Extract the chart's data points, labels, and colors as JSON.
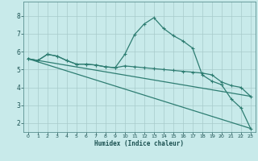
{
  "xlabel": "Humidex (Indice chaleur)",
  "bg_color": "#c8eaea",
  "grid_color": "#a8cbcb",
  "line_color": "#2e7d72",
  "xlim": [
    -0.5,
    23.5
  ],
  "ylim": [
    1.5,
    8.8
  ],
  "xticks": [
    0,
    1,
    2,
    3,
    4,
    5,
    6,
    7,
    8,
    9,
    10,
    11,
    12,
    13,
    14,
    15,
    16,
    17,
    18,
    19,
    20,
    21,
    22,
    23
  ],
  "yticks": [
    2,
    3,
    4,
    5,
    6,
    7,
    8
  ],
  "line1_x": [
    0,
    1,
    2,
    3,
    4,
    5,
    6,
    7,
    8,
    9,
    10,
    11,
    12,
    13,
    14,
    15,
    16,
    17,
    18,
    19,
    20,
    21,
    22,
    23
  ],
  "line1_y": [
    5.6,
    5.5,
    5.85,
    5.75,
    5.5,
    5.3,
    5.3,
    5.25,
    5.15,
    5.1,
    5.2,
    5.15,
    5.1,
    5.05,
    5.0,
    4.95,
    4.9,
    4.85,
    4.8,
    4.7,
    4.3,
    4.1,
    4.0,
    3.5
  ],
  "line2_x": [
    0,
    1,
    2,
    3,
    4,
    5,
    6,
    7,
    8,
    9,
    10,
    11,
    12,
    13,
    14,
    15,
    16,
    17,
    18,
    19,
    20,
    21,
    22,
    23
  ],
  "line2_y": [
    5.6,
    5.5,
    5.85,
    5.75,
    5.5,
    5.3,
    5.3,
    5.25,
    5.15,
    5.1,
    5.85,
    6.95,
    7.55,
    7.9,
    7.3,
    6.9,
    6.6,
    6.2,
    4.7,
    4.35,
    4.15,
    3.35,
    2.85,
    1.7
  ],
  "line3_x": [
    0,
    23
  ],
  "line3_y": [
    5.6,
    3.5
  ],
  "line4_x": [
    0,
    23
  ],
  "line4_y": [
    5.6,
    1.7
  ]
}
